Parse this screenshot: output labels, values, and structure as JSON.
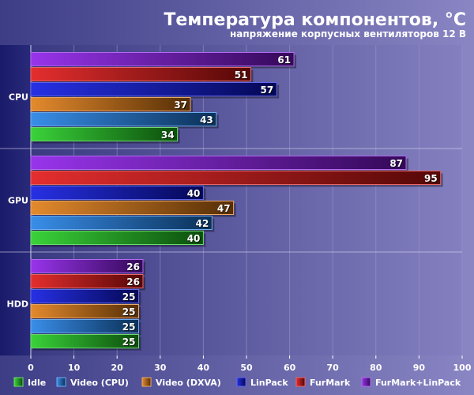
{
  "chart_data": {
    "type": "bar",
    "orientation": "horizontal",
    "title": "Температура компонентов, °C",
    "subtitle": "напряжение корпусных вентиляторов 12 В",
    "categories": [
      "CPU",
      "GPU",
      "HDD"
    ],
    "xlim": [
      0,
      100
    ],
    "xticks": [
      0,
      10,
      20,
      30,
      40,
      50,
      60,
      70,
      80,
      90,
      100
    ],
    "grid": true,
    "legend_position": "bottom",
    "series": [
      {
        "name": "Idle",
        "color": "#1fcc1f",
        "values": [
          34,
          40,
          25
        ]
      },
      {
        "name": "Video (CPU)",
        "color": "#1e7fe6",
        "values": [
          43,
          42,
          25
        ]
      },
      {
        "name": "Video (DXVA)",
        "color": "#e07a10",
        "values": [
          37,
          47,
          25
        ]
      },
      {
        "name": "LinPack",
        "color": "#0a14e0",
        "values": [
          57,
          40,
          25
        ]
      },
      {
        "name": "FurMark",
        "color": "#e01212",
        "values": [
          51,
          95,
          26
        ]
      },
      {
        "name": "FurMark+LinPack",
        "color": "#8a18e8",
        "values": [
          61,
          87,
          26
        ]
      }
    ]
  }
}
